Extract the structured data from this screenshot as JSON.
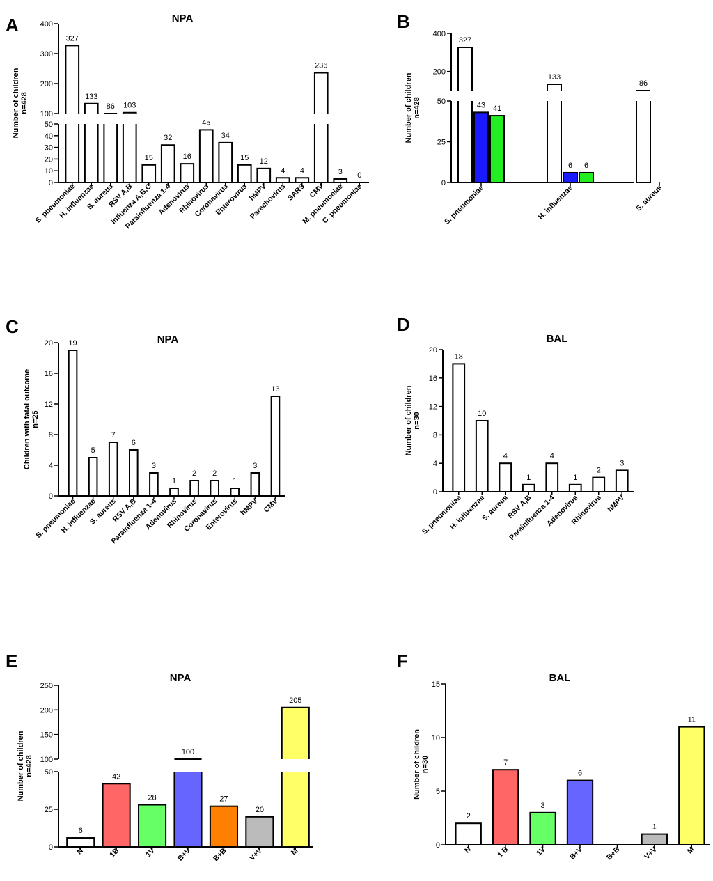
{
  "chart_data": [
    {
      "panel": "A",
      "type": "bar",
      "title": "NPA",
      "ylabel": [
        "Number of children",
        "n=428"
      ],
      "categories": [
        "S. pneumoniae",
        "H. influenzae",
        "S. aureus",
        "RSV A,B",
        "Influenza A,B,C",
        "Parainfluenza 1-4",
        "Adenovirus",
        "Rhinovirus",
        "Coronavirus",
        "Enterovirus",
        "hMPV",
        "Parechovirus",
        "SARS",
        "CMV",
        "M. pneumoniae",
        "C. pneumoniae"
      ],
      "series": [
        {
          "values": [
            327,
            133,
            86,
            103,
            15,
            32,
            16,
            45,
            34,
            15,
            12,
            4,
            4,
            236,
            3,
            0
          ],
          "colors": [
            "#ffffff"
          ]
        }
      ],
      "value_labels": [
        "327",
        "133",
        "86",
        "103",
        "15",
        "32",
        "16",
        "45",
        "34",
        "15",
        "12",
        "4",
        "4",
        "236",
        "3",
        "0"
      ],
      "axis_break": {
        "lower": [
          0,
          50
        ],
        "upper": [
          100,
          400
        ]
      },
      "yticks_lower": [
        "0",
        "10",
        "20",
        "30",
        "40",
        "50"
      ],
      "yticks_upper": [
        "100",
        "200",
        "300",
        "400"
      ],
      "grid": false
    },
    {
      "panel": "B",
      "type": "bar",
      "title": "",
      "ylabel": [
        "Number of children",
        "n=428"
      ],
      "categories": [
        "S. pneumoniae",
        "H. influenzae",
        "S. aureus"
      ],
      "series": [
        {
          "values": [
            327,
            133,
            86
          ],
          "color": "#ffffff"
        },
        {
          "values": [
            43,
            6,
            0
          ],
          "color": "#1a1aff"
        },
        {
          "values": [
            41,
            6,
            0
          ],
          "color": "#22ee22"
        }
      ],
      "value_labels": [
        [
          "327",
          "133",
          "86"
        ],
        [
          "43",
          "6",
          ""
        ],
        [
          "41",
          "6",
          ""
        ]
      ],
      "axis_break": {
        "lower": [
          0,
          50
        ],
        "upper": [
          100,
          400
        ]
      },
      "yticks_lower": [
        "0",
        "25",
        "50"
      ],
      "yticks_upper": [
        "200",
        "400"
      ],
      "grid": false
    },
    {
      "panel": "C",
      "type": "bar",
      "title": "NPA",
      "ylabel": [
        "Children with fatal outcome",
        "n=25"
      ],
      "categories": [
        "S. pneumoniae",
        "H. influenzae",
        "S. aureus",
        "RSV A,B",
        "Parainfluenza 1-4",
        "Adenovirus",
        "Rhinovirus",
        "Coronavirus",
        "Enterovirus",
        "hMPV",
        "CMV"
      ],
      "series": [
        {
          "values": [
            19,
            5,
            7,
            6,
            3,
            1,
            2,
            2,
            1,
            3,
            13
          ],
          "colors": [
            "#ffffff"
          ]
        }
      ],
      "value_labels": [
        "19",
        "5",
        "7",
        "6",
        "3",
        "1",
        "2",
        "2",
        "1",
        "3",
        "13"
      ],
      "ylim": [
        0,
        20
      ],
      "yticks": [
        "0",
        "4",
        "8",
        "12",
        "16",
        "20"
      ],
      "grid": false
    },
    {
      "panel": "D",
      "type": "bar",
      "title": "BAL",
      "ylabel": [
        "Number of children",
        "n=30"
      ],
      "categories": [
        "S. pneumoniae",
        "H. influenzae",
        "S. aureus",
        "RSV A,B",
        "Parainfluenza 1-4",
        "Adenovirus",
        "Rhinovirus",
        "hMPV"
      ],
      "series": [
        {
          "values": [
            18,
            10,
            4,
            1,
            4,
            1,
            2,
            3
          ],
          "colors": [
            "#ffffff"
          ]
        }
      ],
      "value_labels": [
        "18",
        "10",
        "4",
        "1",
        "4",
        "1",
        "2",
        "3"
      ],
      "ylim": [
        0,
        20
      ],
      "yticks": [
        "0",
        "4",
        "8",
        "12",
        "16",
        "20"
      ],
      "grid": false
    },
    {
      "panel": "E",
      "type": "bar",
      "title": "NPA",
      "ylabel": [
        "Number of children",
        "n=428"
      ],
      "categories": [
        "N",
        "1B",
        "1V",
        "B+V",
        "B+B",
        "V+V",
        "M"
      ],
      "series": [
        {
          "values": [
            6,
            42,
            28,
            100,
            27,
            20,
            205
          ],
          "colors": [
            "#ffffff",
            "#ff6666",
            "#66ff66",
            "#6666ff",
            "#ff8000",
            "#bbbbbb",
            "#ffff66"
          ]
        }
      ],
      "value_labels": [
        "6",
        "42",
        "28",
        "100",
        "27",
        "20",
        "205"
      ],
      "axis_break": {
        "lower": [
          0,
          50
        ],
        "upper": [
          100,
          250
        ]
      },
      "yticks_lower": [
        "0",
        "25",
        "50"
      ],
      "yticks_upper": [
        "100",
        "150",
        "200",
        "250"
      ],
      "grid": false
    },
    {
      "panel": "F",
      "type": "bar",
      "title": "BAL",
      "ylabel": [
        "Number of children",
        "n=30"
      ],
      "categories": [
        "N",
        "1 B",
        "1V",
        "B+V",
        "B+B",
        "V+V",
        "M"
      ],
      "series": [
        {
          "values": [
            2,
            7,
            3,
            6,
            0,
            1,
            11
          ],
          "colors": [
            "#ffffff",
            "#ff6666",
            "#66ff66",
            "#6666ff",
            "#ff8000",
            "#bbbbbb",
            "#ffff66"
          ]
        }
      ],
      "value_labels": [
        "2",
        "7",
        "3",
        "6",
        "",
        "1",
        "11"
      ],
      "ylim": [
        0,
        15
      ],
      "yticks": [
        "0",
        "5",
        "10",
        "15"
      ],
      "grid": false
    }
  ],
  "panel_labels": [
    "A",
    "B",
    "C",
    "D",
    "E",
    "F"
  ]
}
